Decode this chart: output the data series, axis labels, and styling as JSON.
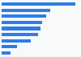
{
  "values": [
    95,
    62,
    57,
    52,
    50,
    47,
    37,
    20,
    11
  ],
  "bar_color": "#2b7de9",
  "background_color": "#f8f9fa",
  "grid_color": "#cccccc",
  "xlim": [
    0,
    100
  ],
  "bar_height": 0.55
}
